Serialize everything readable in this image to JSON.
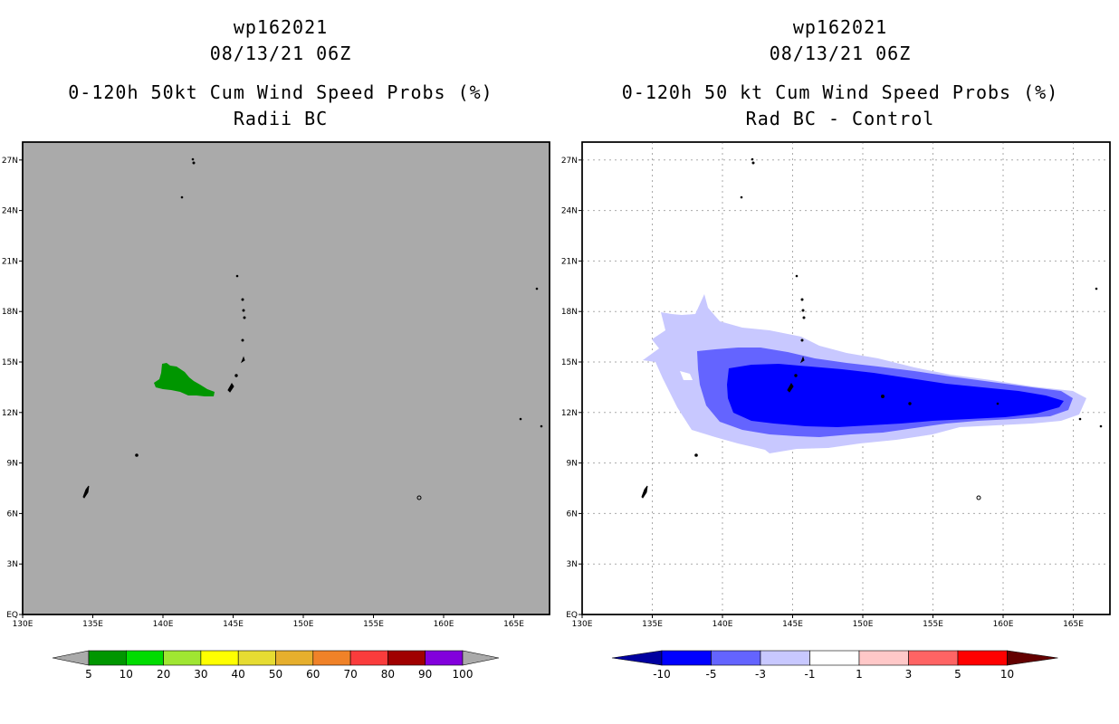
{
  "left_panel": {
    "title": {
      "storm_id": "wp162021",
      "datetime": "08/13/21 06Z",
      "product": "0-120h 50kt Cum Wind Speed Probs (%)",
      "subtitle": "Radii BC"
    },
    "background_color": "#aaaaaa",
    "colorbar": {
      "labels": [
        "5",
        "10",
        "20",
        "30",
        "40",
        "50",
        "60",
        "70",
        "80",
        "90",
        "100"
      ],
      "colors": [
        "#009600",
        "#00dc00",
        "#a0e632",
        "#ffff00",
        "#e6dc32",
        "#e6af2d",
        "#f08228",
        "#fa3c3c",
        "#a00000",
        "#8200dc"
      ],
      "end_color": "#aaaaaa"
    },
    "probability_area": {
      "category": "5-10",
      "color": "#009600"
    }
  },
  "right_panel": {
    "title": {
      "storm_id": "wp162021",
      "datetime": "08/13/21 06Z",
      "product": "0-120h 50 kt Cum Wind Speed Probs (%)",
      "subtitle": "Rad BC - Control"
    },
    "colorbar": {
      "labels": [
        "-10",
        "-5",
        "-3",
        "-1",
        "1",
        "3",
        "5",
        "10"
      ],
      "colors": [
        "#0000c8",
        "#0000ff",
        "#6464ff",
        "#c8c8ff",
        "#ffffff",
        "#ffc8c8",
        "#ff6464",
        "#ff0000",
        "#a00000"
      ],
      "low_end_color": "#0000a0",
      "high_end_color": "#640000"
    },
    "difference_levels": [
      {
        "range": "-1 to -3",
        "color": "#c8c8ff"
      },
      {
        "range": "-3 to -5",
        "color": "#6464ff"
      },
      {
        "range": "-5 to -10",
        "color": "#0000ff"
      }
    ]
  },
  "map": {
    "lon_labels": [
      "130E",
      "135E",
      "140E",
      "145E",
      "150E",
      "155E",
      "160E",
      "165E"
    ],
    "lat_labels": [
      "EQ",
      "3N",
      "6N",
      "9N",
      "12N",
      "15N",
      "18N",
      "21N",
      "24N",
      "27N"
    ],
    "lon_values": [
      130,
      135,
      140,
      145,
      150,
      155,
      160,
      165
    ],
    "lat_values": [
      0,
      3,
      6,
      9,
      12,
      15,
      18,
      21,
      24,
      27
    ],
    "lon_range": [
      130,
      167.5
    ],
    "lat_range": [
      0,
      28
    ]
  }
}
